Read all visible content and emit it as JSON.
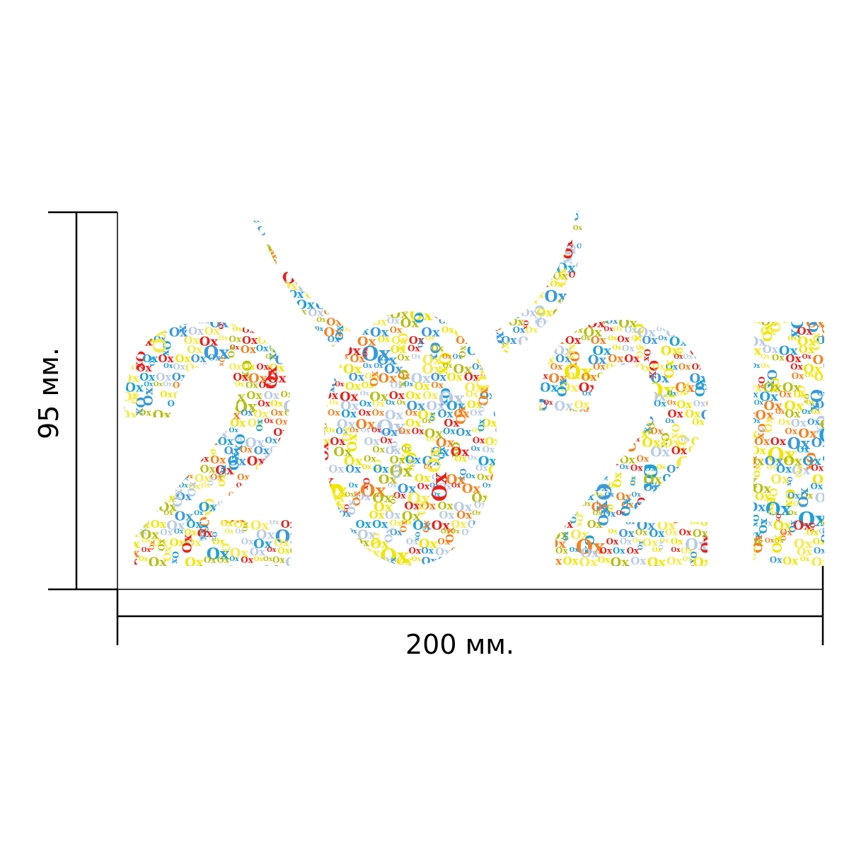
{
  "dimensions": {
    "height_label": "95 мм.",
    "width_label": "200 мм."
  },
  "artwork": {
    "tile_word": "Ox",
    "palette": [
      "#e8211b",
      "#f5821f",
      "#f2e600",
      "#b7bf10",
      "#3a9ad9",
      "#b9cce4",
      "#f7ea48",
      "#1fa0d8"
    ]
  }
}
